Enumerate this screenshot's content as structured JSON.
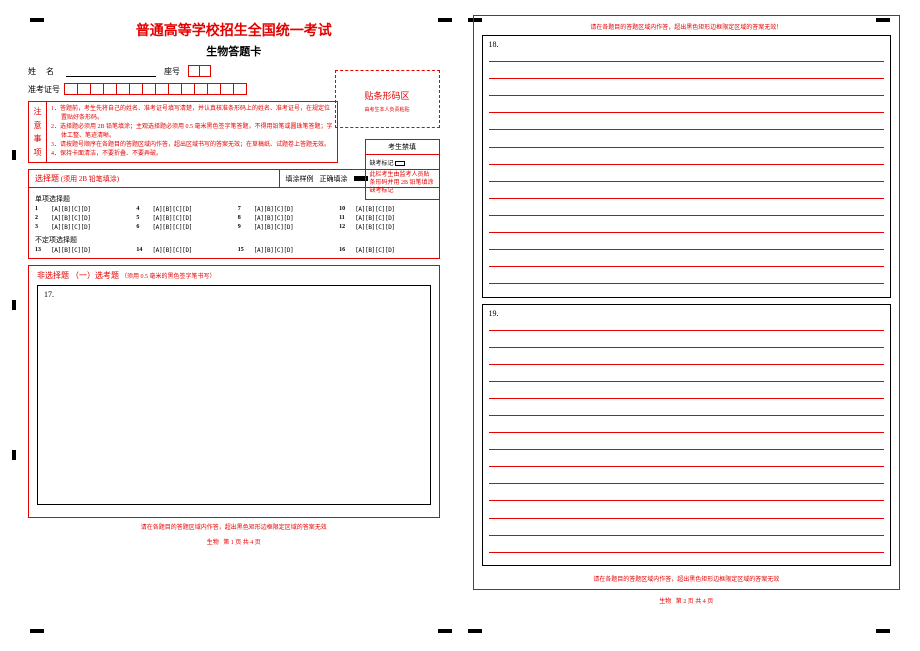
{
  "colors": {
    "red": "#e60000",
    "black": "#000000",
    "white": "#ffffff"
  },
  "header": {
    "title": "普通高等学校招生全国统一考试",
    "subtitle": "生物答题卡"
  },
  "info": {
    "name_label": "姓 名",
    "seat_label": "座号",
    "seat_box_count": 2,
    "id_label": "准考证号",
    "id_box_count": 14
  },
  "barcode": {
    "title": "贴条形码区",
    "note": "由考生本人负责粘贴"
  },
  "notice": {
    "label_chars": [
      "注",
      "意",
      "事",
      "项"
    ],
    "items": [
      "1．答题前，考生先将自己的姓名、准考证号填写清楚，并认真核准条形码上的姓名、准考证号，在规定位置贴好条形码。",
      "2．选择题必须用 2B 铅笔填涂；主观选择题必须用 0.5 毫米黑色签字笔答题，不得用铅笔或圆珠笔答题；字体工整、笔迹清晰。",
      "3．请按题号顺序在各题目的答题区域内作答，超出区域书写的答案无效；在草稿纸、试题卷上答题无效。",
      "4．保持卡面清洁，不要折叠、不要弄破。"
    ]
  },
  "forbid": {
    "title": "考生禁填",
    "absent_label": "缺考标记",
    "note": "此栏考生由监考人员贴条形码并用 2B 铅笔填涂缺考标记"
  },
  "mc": {
    "section_title": "选择题",
    "hint": "(须用 2B 铅笔填涂)",
    "example_label": "填涂样例",
    "correct_label": "正确填涂",
    "single_title": "单项选择题",
    "multi_title": "不定项选择题",
    "options_str": "[A][B][C][D]",
    "single_numbers": [
      "1",
      "4",
      "7",
      "10",
      "2",
      "5",
      "8",
      "11",
      "3",
      "6",
      "9",
      "12"
    ],
    "multi_numbers": [
      "13",
      "14",
      "15",
      "16"
    ]
  },
  "essay": {
    "section_title": "非选择题  （一）选考题",
    "hint": "（须用 0.5 毫米的黑色签字笔书写）",
    "q17": "17.",
    "q18": "18.",
    "q19": "19."
  },
  "warnings": {
    "top_right": "请在各题目的答题区域内作答，超出黑色矩形边框限定区域的答案无效！",
    "bottom_left": "请在各题目的答题区域内作答，超出黑色矩形边框限定区域的答案无效",
    "bottom_right": "请在各题目的答题区域内作答，超出黑色矩形边框限定区域的答案无效"
  },
  "footer": {
    "subject": "生物",
    "page_left": "第 1 页    共 4 页",
    "page_right": "第 2 页    共 4 页"
  },
  "ruled_line_count": 14
}
